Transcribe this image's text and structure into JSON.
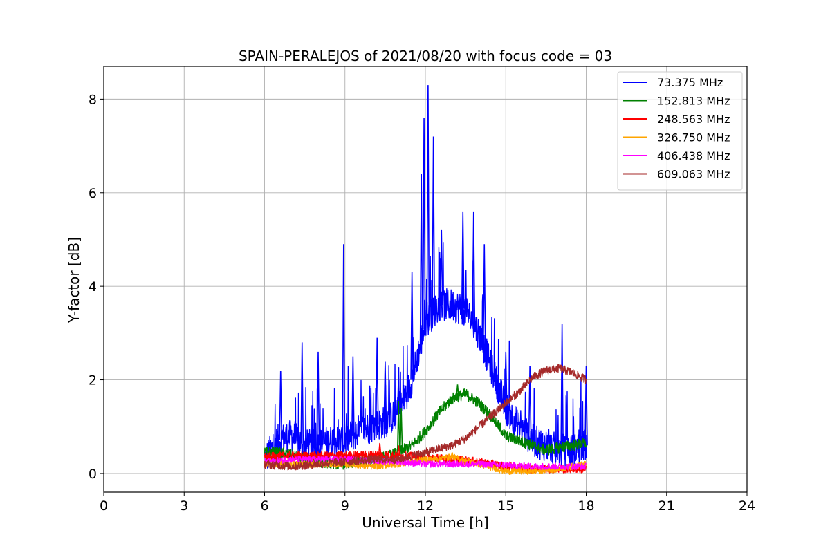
{
  "chart_data": {
    "type": "line",
    "title": "SPAIN-PERALEJOS of 2021/08/20 with focus code = 03",
    "xlabel": "Universal Time [h]",
    "ylabel": "Y-factor [dB]",
    "xlim": [
      0,
      24
    ],
    "ylim": [
      -0.4,
      8.7
    ],
    "xticks": [
      0,
      3,
      6,
      9,
      12,
      15,
      18,
      21,
      24
    ],
    "yticks": [
      0,
      2,
      4,
      6,
      8
    ],
    "grid": true,
    "legend_position": "top-right",
    "series": [
      {
        "name": " 73.375 MHz",
        "color": "#0000ff",
        "x": [
          6.0,
          6.5,
          7.0,
          7.5,
          8.0,
          8.5,
          9.0,
          9.5,
          10.0,
          10.5,
          11.0,
          11.5,
          12.0,
          12.5,
          13.0,
          13.5,
          14.0,
          14.5,
          15.0,
          15.5,
          16.0,
          16.5,
          17.0,
          17.5,
          18.0
        ],
        "y": [
          0.3,
          0.7,
          0.8,
          0.6,
          0.6,
          0.7,
          0.7,
          0.9,
          1.0,
          1.1,
          1.3,
          2.0,
          3.2,
          3.6,
          3.6,
          3.5,
          3.0,
          2.2,
          1.4,
          1.0,
          0.7,
          0.6,
          0.5,
          0.5,
          0.6
        ],
        "peaks": [
          {
            "x": 6.6,
            "y": 2.2
          },
          {
            "x": 7.4,
            "y": 2.8
          },
          {
            "x": 8.0,
            "y": 2.6
          },
          {
            "x": 8.95,
            "y": 4.9
          },
          {
            "x": 9.3,
            "y": 2.5
          },
          {
            "x": 10.2,
            "y": 2.9
          },
          {
            "x": 10.5,
            "y": 2.4
          },
          {
            "x": 11.0,
            "y": 2.1
          },
          {
            "x": 11.5,
            "y": 4.3
          },
          {
            "x": 11.85,
            "y": 6.4
          },
          {
            "x": 11.95,
            "y": 7.6
          },
          {
            "x": 12.1,
            "y": 8.3
          },
          {
            "x": 12.3,
            "y": 7.2
          },
          {
            "x": 12.6,
            "y": 5.2
          },
          {
            "x": 13.4,
            "y": 5.6
          },
          {
            "x": 13.8,
            "y": 5.6
          },
          {
            "x": 14.2,
            "y": 4.9
          },
          {
            "x": 15.0,
            "y": 2.6
          },
          {
            "x": 15.9,
            "y": 2.3
          },
          {
            "x": 17.1,
            "y": 3.2
          },
          {
            "x": 18.0,
            "y": 2.3
          }
        ]
      },
      {
        "name": "152.813 MHz",
        "color": "#008000",
        "x": [
          6.0,
          6.5,
          7.0,
          7.5,
          8.0,
          8.5,
          9.0,
          9.5,
          10.0,
          10.5,
          11.0,
          11.5,
          12.0,
          12.5,
          13.0,
          13.5,
          14.0,
          14.5,
          15.0,
          15.5,
          16.0,
          16.5,
          17.0,
          17.5,
          18.0
        ],
        "y": [
          0.45,
          0.45,
          0.4,
          0.3,
          0.25,
          0.2,
          0.2,
          0.25,
          0.3,
          0.35,
          0.45,
          0.6,
          0.9,
          1.3,
          1.6,
          1.7,
          1.5,
          1.2,
          0.8,
          0.7,
          0.6,
          0.5,
          0.55,
          0.6,
          0.65
        ],
        "peaks": [
          {
            "x": 11.0,
            "y": 1.55
          },
          {
            "x": 11.1,
            "y": 1.4
          },
          {
            "x": 13.2,
            "y": 1.9
          }
        ]
      },
      {
        "name": "248.563 MHz",
        "color": "#ff0000",
        "x": [
          6.0,
          7.0,
          8.0,
          9.0,
          10.0,
          11.0,
          12.0,
          13.0,
          14.0,
          15.0,
          16.0,
          17.0,
          18.0
        ],
        "y": [
          0.35,
          0.38,
          0.38,
          0.38,
          0.4,
          0.38,
          0.35,
          0.3,
          0.25,
          0.15,
          0.1,
          0.1,
          0.1
        ],
        "peaks": [
          {
            "x": 10.3,
            "y": 0.65
          },
          {
            "x": 11.0,
            "y": 0.6
          }
        ]
      },
      {
        "name": "326.750 MHz",
        "color": "#ffa500",
        "x": [
          6.0,
          7.0,
          8.0,
          9.0,
          10.0,
          11.0,
          12.0,
          13.0,
          14.0,
          15.0,
          16.0,
          17.0,
          18.0
        ],
        "y": [
          0.2,
          0.2,
          0.2,
          0.2,
          0.15,
          0.2,
          0.3,
          0.35,
          0.2,
          0.05,
          0.05,
          0.1,
          0.2
        ],
        "peaks": [
          {
            "x": 13.0,
            "y": 0.45
          }
        ]
      },
      {
        "name": "406.438 MHz",
        "color": "#ff00ff",
        "x": [
          6.0,
          7.0,
          8.0,
          9.0,
          10.0,
          11.0,
          12.0,
          13.0,
          14.0,
          15.0,
          16.0,
          17.0,
          18.0
        ],
        "y": [
          0.25,
          0.3,
          0.3,
          0.3,
          0.28,
          0.25,
          0.2,
          0.2,
          0.2,
          0.18,
          0.15,
          0.15,
          0.15
        ],
        "peaks": []
      },
      {
        "name": "609.063 MHz",
        "color": "#a52a2a",
        "x": [
          6.0,
          7.0,
          8.0,
          9.0,
          10.0,
          11.0,
          12.0,
          13.0,
          13.5,
          14.0,
          14.5,
          15.0,
          15.5,
          16.0,
          16.5,
          17.0,
          17.5,
          18.0
        ],
        "y": [
          0.2,
          0.15,
          0.2,
          0.25,
          0.3,
          0.3,
          0.45,
          0.6,
          0.75,
          1.0,
          1.25,
          1.5,
          1.75,
          2.05,
          2.2,
          2.25,
          2.15,
          2.0
        ],
        "peaks": []
      }
    ]
  }
}
